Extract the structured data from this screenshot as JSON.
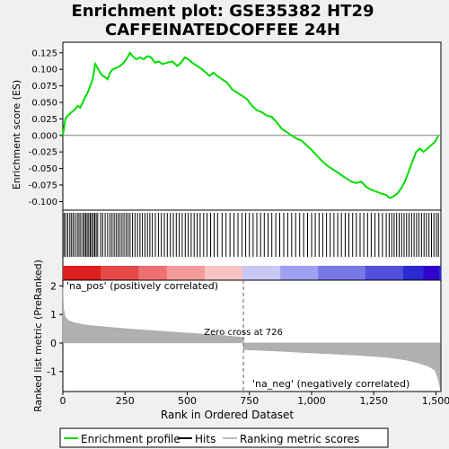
{
  "chart_data": {
    "type": "line",
    "title_lines": [
      "Enrichment plot: GSE35382 HT29",
      "CAFFEINATEDCOFFEE 24H"
    ],
    "top_panel": {
      "ylabel": "Enrichment score (ES)",
      "ylim": [
        -0.113,
        0.141
      ],
      "yticks": [
        0.125,
        0.1,
        0.075,
        0.05,
        0.025,
        0.0,
        -0.025,
        -0.05,
        -0.075,
        -0.1
      ],
      "ytick_labels": [
        "0.125",
        "0.100",
        "0.075",
        "0.050",
        "0.025",
        "0.000",
        "-0.025",
        "-0.050",
        "-0.075",
        "-0.100"
      ],
      "series": [
        {
          "name": "Enrichment profile",
          "color": "#00dd00",
          "x": [
            0,
            10,
            20,
            35,
            50,
            60,
            70,
            80,
            90,
            100,
            110,
            120,
            130,
            140,
            150,
            160,
            170,
            180,
            190,
            200,
            215,
            230,
            245,
            260,
            270,
            280,
            295,
            310,
            325,
            340,
            355,
            370,
            385,
            400,
            420,
            440,
            460,
            475,
            490,
            505,
            520,
            540,
            560,
            575,
            590,
            605,
            620,
            640,
            660,
            680,
            700,
            720,
            740,
            760,
            780,
            800,
            820,
            840,
            860,
            880,
            900,
            920,
            940,
            960,
            980,
            1000,
            1020,
            1040,
            1060,
            1080,
            1100,
            1120,
            1140,
            1160,
            1180,
            1200,
            1220,
            1240,
            1260,
            1280,
            1300,
            1315,
            1330,
            1345,
            1360,
            1375,
            1390,
            1405,
            1420,
            1435,
            1450,
            1465,
            1480,
            1495,
            1510
          ],
          "y": [
            0.0,
            0.025,
            0.03,
            0.035,
            0.04,
            0.045,
            0.042,
            0.05,
            0.058,
            0.065,
            0.075,
            0.085,
            0.108,
            0.102,
            0.095,
            0.09,
            0.088,
            0.085,
            0.095,
            0.1,
            0.102,
            0.105,
            0.11,
            0.118,
            0.125,
            0.12,
            0.115,
            0.118,
            0.115,
            0.12,
            0.118,
            0.11,
            0.112,
            0.108,
            0.11,
            0.112,
            0.105,
            0.11,
            0.118,
            0.115,
            0.11,
            0.105,
            0.1,
            0.095,
            0.09,
            0.095,
            0.09,
            0.085,
            0.08,
            0.07,
            0.065,
            0.06,
            0.055,
            0.045,
            0.038,
            0.035,
            0.03,
            0.028,
            0.02,
            0.01,
            0.005,
            0.0,
            -0.005,
            -0.008,
            -0.015,
            -0.022,
            -0.03,
            -0.038,
            -0.045,
            -0.05,
            -0.055,
            -0.06,
            -0.065,
            -0.07,
            -0.072,
            -0.07,
            -0.078,
            -0.082,
            -0.085,
            -0.088,
            -0.09,
            -0.095,
            -0.092,
            -0.088,
            -0.08,
            -0.07,
            -0.055,
            -0.04,
            -0.025,
            -0.02,
            -0.025,
            -0.02,
            -0.015,
            -0.01,
            0.0
          ]
        }
      ]
    },
    "hits_panel": {
      "hit_ranks": [
        5,
        12,
        20,
        28,
        35,
        42,
        50,
        58,
        65,
        72,
        80,
        86,
        92,
        98,
        104,
        110,
        116,
        122,
        128,
        134,
        140,
        152,
        160,
        170,
        180,
        190,
        198,
        206,
        214,
        222,
        230,
        238,
        246,
        254,
        262,
        270,
        280,
        290,
        300,
        310,
        320,
        330,
        340,
        350,
        360,
        372,
        384,
        396,
        408,
        420,
        432,
        444,
        456,
        468,
        480,
        492,
        504,
        516,
        528,
        540,
        552,
        566,
        580,
        594,
        608,
        622,
        640,
        656,
        672,
        688,
        704,
        720,
        735,
        750,
        765,
        780,
        795,
        810,
        825,
        840,
        856,
        872,
        888,
        904,
        920,
        936,
        952,
        968,
        984,
        1000,
        1015,
        1030,
        1045,
        1060,
        1075,
        1090,
        1105,
        1120,
        1135,
        1150,
        1165,
        1180,
        1195,
        1210,
        1225,
        1240,
        1255,
        1270,
        1285,
        1300,
        1312,
        1322,
        1332,
        1342,
        1352,
        1362,
        1372,
        1382,
        1392,
        1402,
        1412,
        1422,
        1432,
        1442,
        1452,
        1462,
        1472,
        1482,
        1492,
        1502,
        1510
      ],
      "color_bar": {
        "positive_colors": [
          "#dd1f1f",
          "#e84848",
          "#f07070",
          "#f59a9a",
          "#f8c3c3"
        ],
        "negative_colors": [
          "#c8c8f6",
          "#a0a0f0",
          "#7878e8",
          "#5050dd",
          "#2a2ad0"
        ],
        "end_block_color": "#3300cc"
      }
    },
    "bottom_panel": {
      "ylabel": "Ranked list metric (PreRanked)",
      "xlabel": "Rank in Ordered Dataset",
      "xlim": [
        0,
        1520
      ],
      "ylim": [
        -1.7,
        2.2
      ],
      "yticks": [
        2,
        1,
        0,
        -1
      ],
      "ytick_labels": [
        "2",
        "1",
        "0",
        "-1"
      ],
      "xticks": [
        0,
        250,
        500,
        750,
        1000,
        1250,
        1500
      ],
      "xtick_labels": [
        "0",
        "250",
        "500",
        "750",
        "1,000",
        "1,250",
        "1,500"
      ],
      "metric_shape": {
        "x": [
          0,
          3,
          10,
          25,
          50,
          100,
          200,
          300,
          400,
          500,
          600,
          700,
          726,
          727,
          800,
          900,
          1000,
          1100,
          1200,
          1300,
          1380,
          1430,
          1470,
          1495,
          1505,
          1512,
          1518
        ],
        "y": [
          1.95,
          1.2,
          0.9,
          0.78,
          0.7,
          0.62,
          0.54,
          0.47,
          0.41,
          0.35,
          0.29,
          0.22,
          0.19,
          -0.23,
          -0.26,
          -0.3,
          -0.35,
          -0.39,
          -0.44,
          -0.5,
          -0.6,
          -0.7,
          -0.82,
          -0.95,
          -1.15,
          -1.4,
          -1.6
        ]
      },
      "zero_cross_rank": 726,
      "zero_cross_label": "Zero cross at 726",
      "pos_label": "'na_pos' (positively correlated)",
      "neg_label": "'na_neg' (negatively correlated)",
      "pos_label_color": "#cc0000",
      "neg_label_color": "#0000cc"
    },
    "legend": {
      "entries": [
        {
          "label": "Enrichment profile",
          "color": "#00dd00"
        },
        {
          "label": "Hits",
          "color": "#000000"
        },
        {
          "label": "Ranking metric scores",
          "color": "#bbbbbb"
        }
      ]
    }
  }
}
